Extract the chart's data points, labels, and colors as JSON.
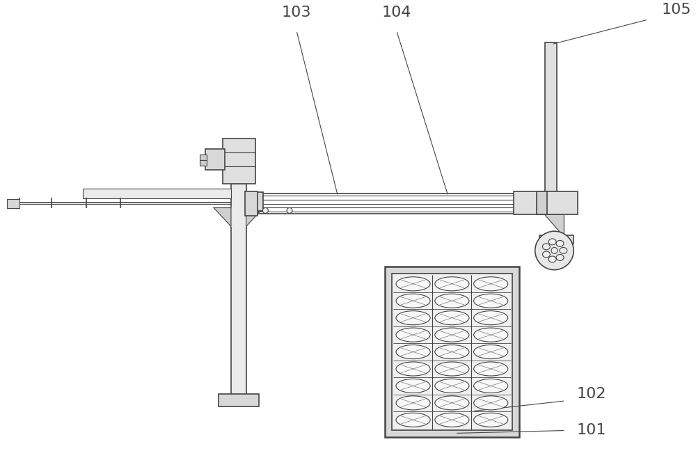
{
  "bg_color": "#ffffff",
  "lc": "#444444",
  "fc_light": "#e8e8e8",
  "fc_white": "#f8f8f8",
  "label_103": "103",
  "label_104": "104",
  "label_105": "105",
  "label_102": "102",
  "label_101": "101",
  "label_fontsize": 16,
  "fig_width": 10.0,
  "fig_height": 6.81
}
